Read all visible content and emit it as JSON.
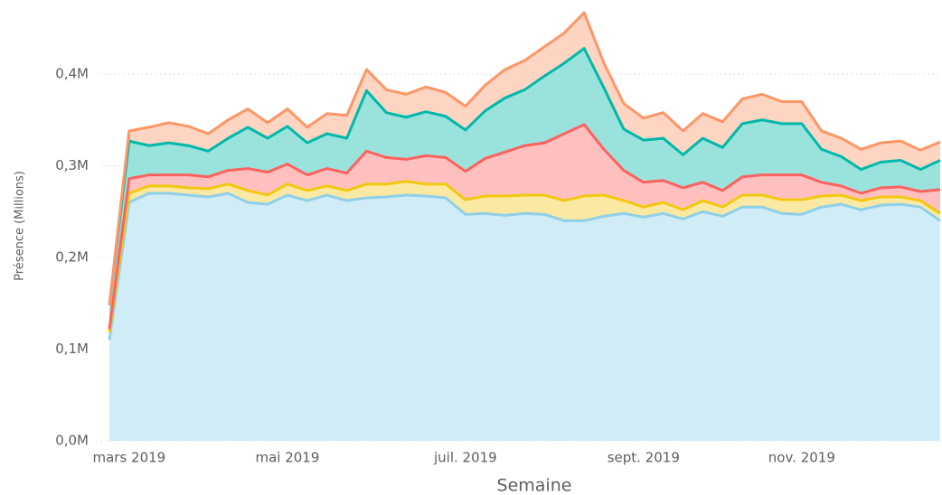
{
  "chart_data": {
    "type": "stacked-area",
    "ylabel": "Présence (Millions)",
    "xlabel": "Semaine",
    "categories": [
      null,
      "mars 2019",
      null,
      null,
      null,
      null,
      null,
      null,
      null,
      "mai 2019",
      null,
      null,
      null,
      null,
      null,
      null,
      null,
      null,
      "juil. 2019",
      null,
      null,
      null,
      null,
      null,
      null,
      null,
      null,
      "sept. 2019",
      null,
      null,
      null,
      null,
      null,
      null,
      null,
      "nov. 2019",
      null,
      null,
      null,
      null,
      null,
      null,
      null
    ],
    "ylim": [
      0,
      0.47
    ],
    "yticks": [
      {
        "value": 0,
        "label": "0,0M"
      },
      {
        "value": 0.1,
        "label": "0,1M"
      },
      {
        "value": 0.2,
        "label": "0,2M"
      },
      {
        "value": 0.3,
        "label": "0,3M"
      },
      {
        "value": 0.4,
        "label": "0,4M"
      }
    ],
    "grid": true,
    "series": [
      {
        "color": "#8fd0e8",
        "fill": "#cfecf7",
        "values": [
          0.11,
          0.26,
          0.27,
          0.27,
          0.268,
          0.266,
          0.27,
          0.26,
          0.258,
          0.268,
          0.262,
          0.268,
          0.262,
          0.265,
          0.266,
          0.268,
          0.267,
          0.265,
          0.247,
          0.248,
          0.246,
          0.248,
          0.247,
          0.24,
          0.24,
          0.245,
          0.248,
          0.244,
          0.248,
          0.242,
          0.25,
          0.245,
          0.255,
          0.255,
          0.248,
          0.247,
          0.255,
          0.258,
          0.252,
          0.257,
          0.258,
          0.255,
          0.24
        ]
      },
      {
        "color": "#f2c80f",
        "fill": "#fbe9a3",
        "values": [
          0.008,
          0.01,
          0.008,
          0.008,
          0.008,
          0.009,
          0.01,
          0.013,
          0.01,
          0.012,
          0.011,
          0.01,
          0.011,
          0.015,
          0.014,
          0.015,
          0.013,
          0.015,
          0.016,
          0.019,
          0.021,
          0.02,
          0.021,
          0.022,
          0.027,
          0.023,
          0.014,
          0.011,
          0.012,
          0.01,
          0.012,
          0.01,
          0.013,
          0.013,
          0.015,
          0.016,
          0.012,
          0.01,
          0.01,
          0.009,
          0.008,
          0.007,
          0.008
        ]
      },
      {
        "color": "#fd625e",
        "fill": "#fec0bf",
        "values": [
          0.004,
          0.016,
          0.012,
          0.012,
          0.014,
          0.013,
          0.015,
          0.024,
          0.025,
          0.022,
          0.017,
          0.019,
          0.019,
          0.036,
          0.029,
          0.024,
          0.031,
          0.029,
          0.031,
          0.041,
          0.048,
          0.054,
          0.057,
          0.073,
          0.078,
          0.05,
          0.033,
          0.027,
          0.024,
          0.024,
          0.02,
          0.018,
          0.02,
          0.022,
          0.027,
          0.027,
          0.015,
          0.01,
          0.008,
          0.01,
          0.011,
          0.01,
          0.026
        ]
      },
      {
        "color": "#01b8aa",
        "fill": "#9ae3dd",
        "values": [
          0.026,
          0.041,
          0.032,
          0.035,
          0.032,
          0.028,
          0.035,
          0.045,
          0.037,
          0.041,
          0.035,
          0.038,
          0.038,
          0.066,
          0.049,
          0.046,
          0.048,
          0.045,
          0.045,
          0.052,
          0.059,
          0.061,
          0.073,
          0.077,
          0.083,
          0.067,
          0.045,
          0.046,
          0.046,
          0.036,
          0.048,
          0.047,
          0.058,
          0.06,
          0.056,
          0.056,
          0.036,
          0.032,
          0.026,
          0.028,
          0.029,
          0.024,
          0.032
        ]
      },
      {
        "color": "#fe9666",
        "fill": "#fed5c2",
        "values": [
          0.0,
          0.011,
          0.02,
          0.022,
          0.021,
          0.019,
          0.02,
          0.02,
          0.017,
          0.019,
          0.017,
          0.022,
          0.025,
          0.023,
          0.025,
          0.025,
          0.027,
          0.026,
          0.026,
          0.028,
          0.031,
          0.032,
          0.032,
          0.033,
          0.039,
          0.027,
          0.028,
          0.024,
          0.028,
          0.026,
          0.027,
          0.028,
          0.027,
          0.028,
          0.024,
          0.024,
          0.02,
          0.02,
          0.022,
          0.021,
          0.021,
          0.021,
          0.02
        ]
      }
    ]
  }
}
